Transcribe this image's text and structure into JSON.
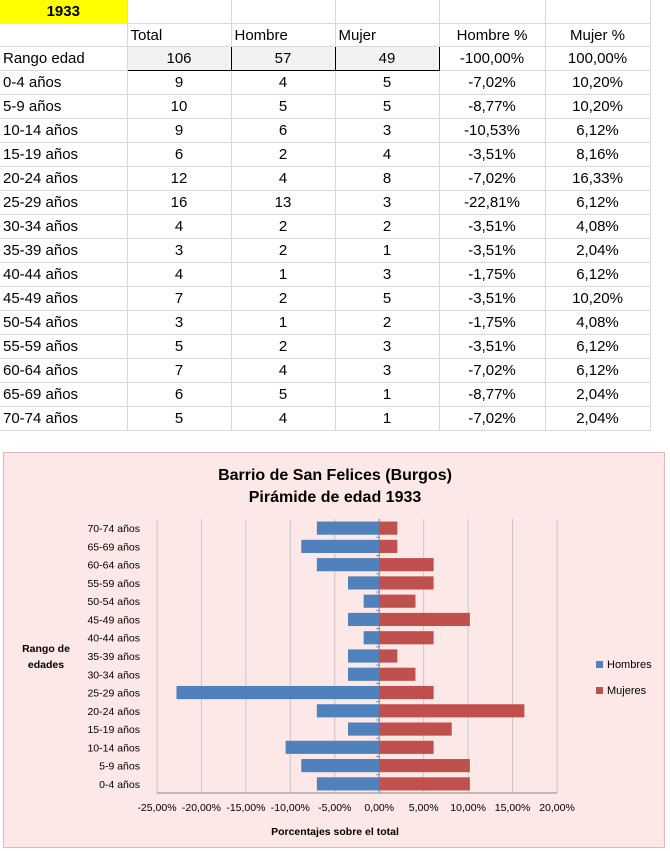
{
  "sheet": {
    "year_label": "1933",
    "headers": [
      "",
      "Total",
      "Hombre",
      "Mujer",
      "Hombre %",
      "Mujer %"
    ],
    "rows": [
      [
        "Rango edad",
        "106",
        "57",
        "49",
        "-100,00%",
        "100,00%"
      ],
      [
        "0-4 años",
        "9",
        "4",
        "5",
        "-7,02%",
        "10,20%"
      ],
      [
        "5-9 años",
        "10",
        "5",
        "5",
        "-8,77%",
        "10,20%"
      ],
      [
        "10-14 años",
        "9",
        "6",
        "3",
        "-10,53%",
        "6,12%"
      ],
      [
        "15-19 años",
        "6",
        "2",
        "4",
        "-3,51%",
        "8,16%"
      ],
      [
        "20-24 años",
        "12",
        "4",
        "8",
        "-7,02%",
        "16,33%"
      ],
      [
        "25-29 años",
        "16",
        "13",
        "3",
        "-22,81%",
        "6,12%"
      ],
      [
        "30-34 años",
        "4",
        "2",
        "2",
        "-3,51%",
        "4,08%"
      ],
      [
        "35-39 años",
        "3",
        "2",
        "1",
        "-3,51%",
        "2,04%"
      ],
      [
        "40-44 años",
        "4",
        "1",
        "3",
        "-1,75%",
        "6,12%"
      ],
      [
        "45-49 años",
        "7",
        "2",
        "5",
        "-3,51%",
        "10,20%"
      ],
      [
        "50-54 años",
        "3",
        "1",
        "2",
        "-1,75%",
        "4,08%"
      ],
      [
        "55-59 años",
        "5",
        "2",
        "3",
        "-3,51%",
        "6,12%"
      ],
      [
        "60-64 años",
        "7",
        "4",
        "3",
        "-7,02%",
        "6,12%"
      ],
      [
        "65-69 años",
        "6",
        "5",
        "1",
        "-8,77%",
        "2,04%"
      ],
      [
        "70-74 años",
        "5",
        "4",
        "1",
        "-7,02%",
        "2,04%"
      ]
    ]
  },
  "chart_data": {
    "type": "bar",
    "orientation": "horizontal",
    "title_lines": [
      "Barrio de San Felices (Burgos)",
      "Pirámide de edad 1933"
    ],
    "ylabel_lines": [
      "Rango de",
      "edades"
    ],
    "xlabel": "Porcentajes sobre el total",
    "categories": [
      "0-4 años",
      "5-9 años",
      "10-14 años",
      "15-19 años",
      "20-24 años",
      "25-29 años",
      "30-34 años",
      "35-39 años",
      "40-44 años",
      "45-49 años",
      "50-54 años",
      "55-59 años",
      "60-64 años",
      "65-69 años",
      "70-74 años"
    ],
    "series": [
      {
        "name": "Hombres",
        "color": "#4f81bd",
        "values": [
          -7.02,
          -8.77,
          -10.53,
          -3.51,
          -7.02,
          -22.81,
          -3.51,
          -3.51,
          -1.75,
          -3.51,
          -1.75,
          -3.51,
          -7.02,
          -8.77,
          -7.02
        ]
      },
      {
        "name": "Mujeres",
        "color": "#c0504d",
        "values": [
          10.2,
          10.2,
          6.12,
          8.16,
          16.33,
          6.12,
          4.08,
          2.04,
          6.12,
          10.2,
          4.08,
          6.12,
          6.12,
          2.04,
          2.04
        ]
      }
    ],
    "xlim": [
      -25,
      20
    ],
    "xticks": [
      -25,
      -20,
      -15,
      -10,
      -5,
      0,
      5,
      10,
      15,
      20
    ],
    "xtick_labels": [
      "-25,00%",
      "-20,00%",
      "-15,00%",
      "-10,00%",
      "-5,00%",
      "0,00%",
      "5,00%",
      "10,00%",
      "15,00%",
      "20,00%"
    ],
    "grid": true,
    "legend_position": "right"
  }
}
